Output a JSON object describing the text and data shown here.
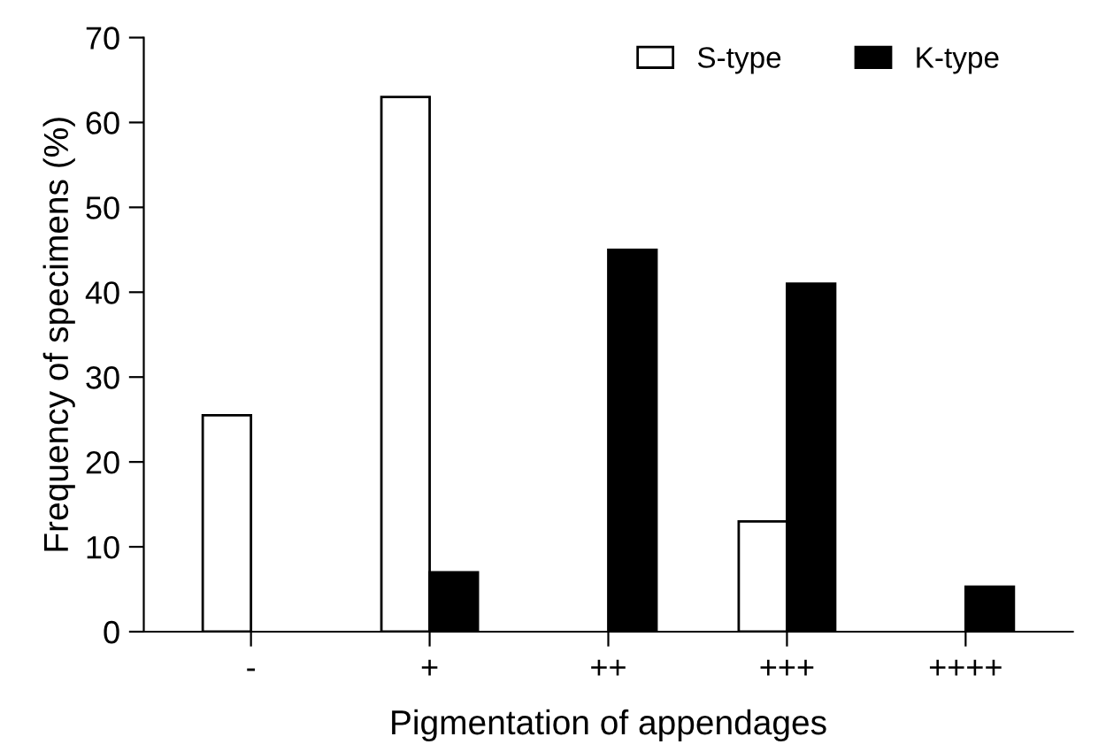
{
  "chart_data": {
    "type": "bar",
    "xlabel": "Pigmentation of appendages",
    "ylabel": "Frequency of specimens (%)",
    "categories": [
      "-",
      "+",
      "++",
      "+++",
      "++++"
    ],
    "series": [
      {
        "name": "S-type",
        "color": "#ffffff",
        "values": [
          25.5,
          63,
          null,
          13,
          null
        ]
      },
      {
        "name": "K-type",
        "color": "#000000",
        "values": [
          null,
          7,
          45,
          41,
          5.3
        ]
      }
    ],
    "ylim": [
      0,
      70
    ],
    "yticks": [
      0,
      10,
      20,
      30,
      40,
      50,
      60,
      70
    ],
    "grid": false,
    "legend": "top right"
  }
}
